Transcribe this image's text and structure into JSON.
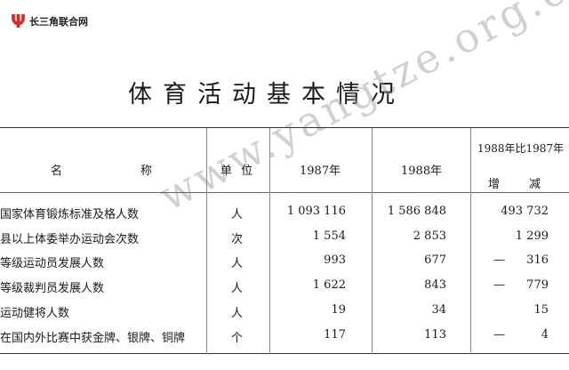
{
  "logo": {
    "mark": "Ψ",
    "text": "长三角联合网",
    "color": "#d42a2a"
  },
  "title": "体育活动基本情况",
  "table": {
    "headers": {
      "name_left": "名",
      "name_right": "称",
      "unit": "单 位",
      "y1987": "1987年",
      "y1988": "1988年",
      "change_line1": "1988年比1987年",
      "change_line2_left": "增",
      "change_line2_right": "减"
    },
    "rows": [
      {
        "name": "国家体育锻炼标准及格人数",
        "unit": "人",
        "y1987": "1 093 116",
        "y1988": "1 586 848",
        "sign": "",
        "change": "493 732"
      },
      {
        "name": "县以上体委举办运动会次数",
        "unit": "次",
        "y1987": "1 554",
        "y1988": "2 853",
        "sign": "",
        "change": "1 299"
      },
      {
        "name": "等级运动员发展人数",
        "unit": "人",
        "y1987": "993",
        "y1988": "677",
        "sign": "—",
        "change": "316"
      },
      {
        "name": "等级裁判员发展人数",
        "unit": "人",
        "y1987": "1 622",
        "y1988": "843",
        "sign": "—",
        "change": "779"
      },
      {
        "name": "运动健将人数",
        "unit": "人",
        "y1987": "19",
        "y1988": "34",
        "sign": "",
        "change": "15"
      },
      {
        "name": "在国内外比赛中获金牌、银牌、铜牌",
        "unit": "个",
        "y1987": "117",
        "y1988": "113",
        "sign": "—",
        "change": "4"
      }
    ]
  },
  "watermark": "www.yangtze.org.cn"
}
